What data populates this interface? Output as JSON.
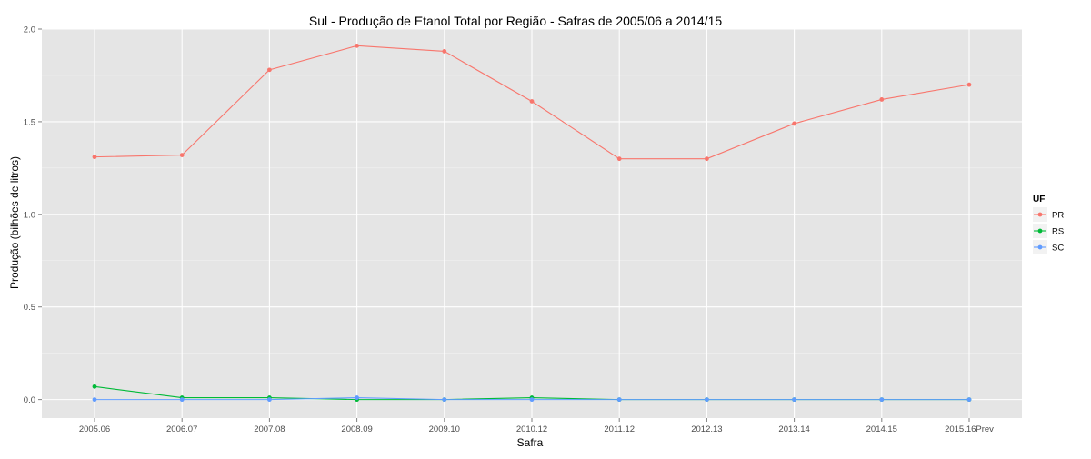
{
  "chart_data": {
    "type": "line",
    "title": "Sul  - Produção de Etanol Total por Região - Safras de 2005/06 a 2014/15",
    "xlabel": "Safra",
    "ylabel": "Produção (bilhões de litros)",
    "categories": [
      "2005.06",
      "2006.07",
      "2007.08",
      "2008.09",
      "2009.10",
      "2010.12",
      "2011.12",
      "2012.13",
      "2013.14",
      "2014.15",
      "2015.16Prev"
    ],
    "ylim": [
      -0.1,
      2.0
    ],
    "yticks": [
      "0.0",
      "0.5",
      "1.0",
      "1.5",
      "2.0"
    ],
    "grid": true,
    "legend": {
      "title": "UF",
      "placement": "right"
    },
    "series": [
      {
        "name": "PR",
        "color": "#F8766D",
        "values": [
          1.31,
          1.32,
          1.78,
          1.91,
          1.88,
          1.61,
          1.3,
          1.3,
          1.49,
          1.62,
          1.7
        ]
      },
      {
        "name": "RS",
        "color": "#00BA38",
        "values": [
          0.07,
          0.01,
          0.01,
          0.0,
          0.0,
          0.01,
          0.0,
          0.0,
          0.0,
          0.0,
          0.0
        ]
      },
      {
        "name": "SC",
        "color": "#619CFF",
        "values": [
          0.0,
          0.0,
          0.0,
          0.01,
          0.0,
          0.0,
          0.0,
          0.0,
          0.0,
          0.0,
          0.0
        ]
      }
    ]
  }
}
